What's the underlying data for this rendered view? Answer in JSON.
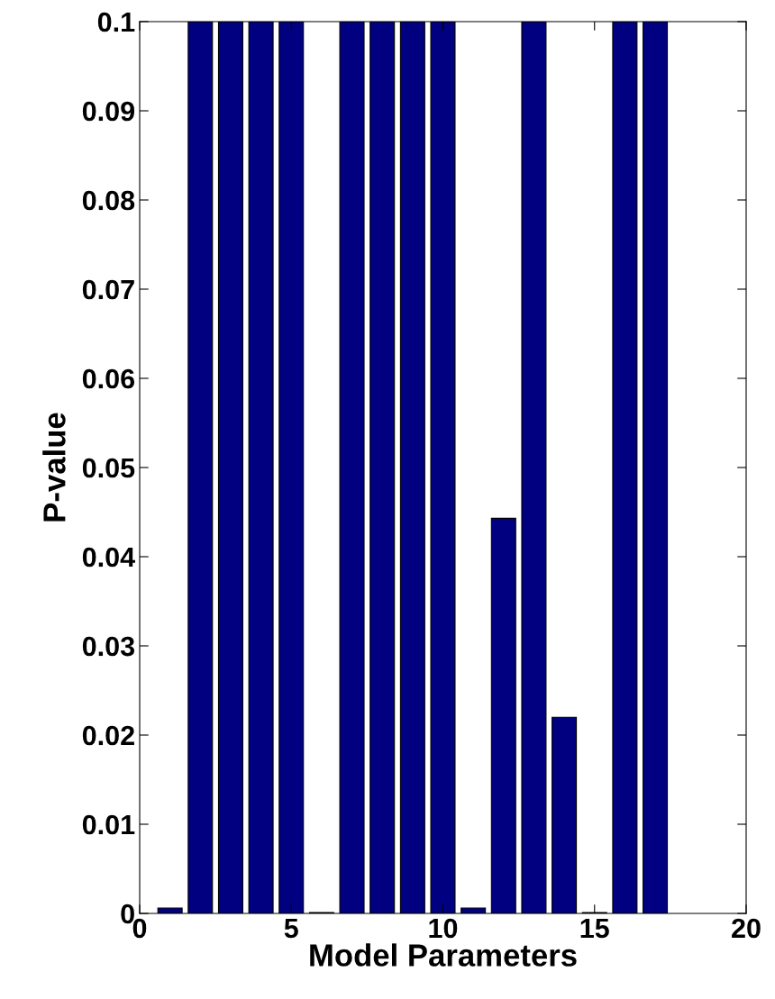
{
  "chart_data": {
    "type": "bar",
    "xlabel": "Model Parameters",
    "ylabel": "P-value",
    "x": [
      1,
      2,
      3,
      4,
      5,
      6,
      7,
      8,
      9,
      10,
      11,
      12,
      13,
      14,
      15,
      16,
      17
    ],
    "values": [
      0.0006,
      0.1,
      0.1,
      0.1,
      0.1,
      0.0001,
      0.1,
      0.1,
      0.1,
      0.1,
      0.0006,
      0.0443,
      0.1,
      0.022,
      0.0001,
      0.1,
      0.1
    ],
    "color": "#000080",
    "xlim": [
      0,
      20
    ],
    "xticks": [
      0,
      5,
      10,
      15,
      20
    ],
    "ylim": [
      0,
      0.1
    ],
    "yticks": [
      0,
      0.01,
      0.02,
      0.03,
      0.04,
      0.05,
      0.06,
      0.07,
      0.08,
      0.09,
      0.1
    ],
    "grid": false
  }
}
